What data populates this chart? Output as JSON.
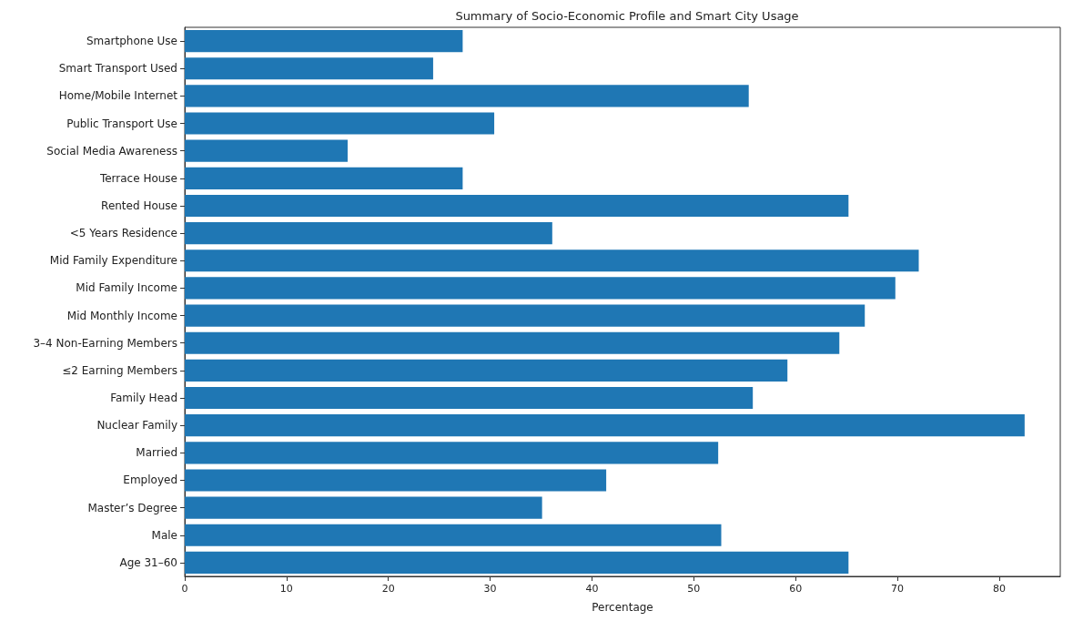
{
  "chart_data": {
    "type": "bar",
    "orientation": "horizontal",
    "title": "Summary of Socio-Economic Profile and Smart City Usage",
    "xlabel": "Percentage",
    "categories": [
      "Smartphone Use",
      "Smart Transport Used",
      "Home/Mobile Internet",
      "Public Transport Use",
      "Social Media Awareness",
      "Terrace House",
      "Rented House",
      "<5 Years Residence",
      "Mid Family Expenditure",
      "Mid Family Income",
      "Mid Monthly Income",
      "3–4 Non-Earning Members",
      "≤2 Earning Members",
      "Family Head",
      "Nuclear Family",
      "Married",
      "Employed",
      "Master’s Degree",
      "Male",
      "Age 31–60"
    ],
    "values": [
      27.3,
      24.4,
      55.4,
      30.4,
      16.0,
      27.3,
      65.2,
      36.1,
      72.1,
      69.8,
      66.8,
      64.3,
      59.2,
      55.8,
      82.5,
      52.4,
      41.4,
      35.1,
      52.7,
      65.2
    ],
    "color": "#1f77b4",
    "xlim": [
      0,
      86
    ],
    "xticks": [
      0,
      10,
      20,
      30,
      40,
      50,
      60,
      70,
      80
    ],
    "grid": false
  }
}
